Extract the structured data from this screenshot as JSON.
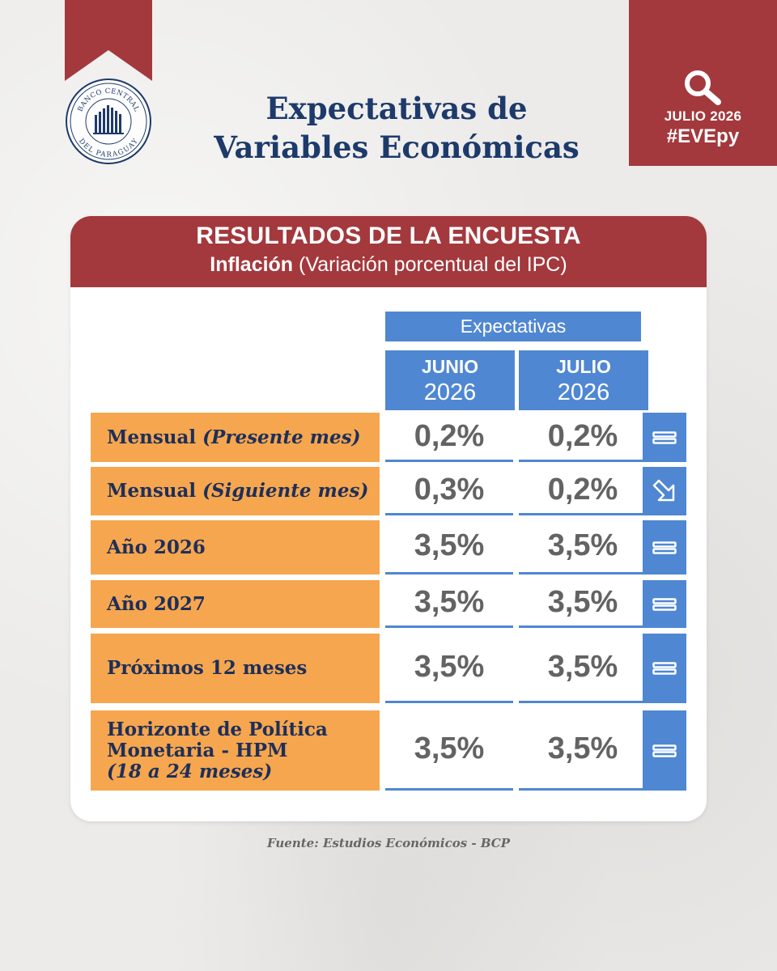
{
  "logo": {
    "text_top": "BANCO CENTRAL",
    "text_bottom": "DEL PARAGUAY"
  },
  "title": {
    "line1": "Expectativas de",
    "line2": "Variables Económicas"
  },
  "tag": {
    "icon": "search-icon",
    "month": "JULIO 2026",
    "hashtag": "#EVEpy"
  },
  "header": {
    "title": "RESULTADOS DE LA ENCUESTA",
    "subtitle_bold": "Inflación",
    "subtitle_rest": "(Variación porcentual del IPC)"
  },
  "table": {
    "group_label": "Expectativas",
    "columns": [
      {
        "month": "JUNIO",
        "year": "2026"
      },
      {
        "month": "JULIO",
        "year": "2026"
      }
    ],
    "rows": [
      {
        "label": "Mensual",
        "label_italic": "(Presente mes)",
        "junio": "0,2%",
        "julio": "0,2%",
        "trend": "equal"
      },
      {
        "label": "Mensual",
        "label_italic": "(Siguiente mes)",
        "junio": "0,3%",
        "julio": "0,2%",
        "trend": "down"
      },
      {
        "label": "Año 2026",
        "label_italic": "",
        "junio": "3,5%",
        "julio": "3,5%",
        "trend": "equal"
      },
      {
        "label": "Año 2027",
        "label_italic": "",
        "junio": "3,5%",
        "julio": "3,5%",
        "trend": "equal"
      },
      {
        "label": "Próximos 12 meses",
        "label_italic": "",
        "junio": "3,5%",
        "julio": "3,5%",
        "trend": "equal"
      },
      {
        "label_line1": "Horizonte de Política",
        "label_line2": "Monetaria - HPM",
        "label_italic": "(18 a 24 meses)",
        "junio": "3,5%",
        "julio": "3,5%",
        "trend": "equal"
      }
    ]
  },
  "source": "Fuente: Estudios Económicos - BCP",
  "colors": {
    "brand_red": "#a3393d",
    "navy": "#1d3a6b",
    "blue": "#4f87d2",
    "orange": "#f6a64e"
  }
}
